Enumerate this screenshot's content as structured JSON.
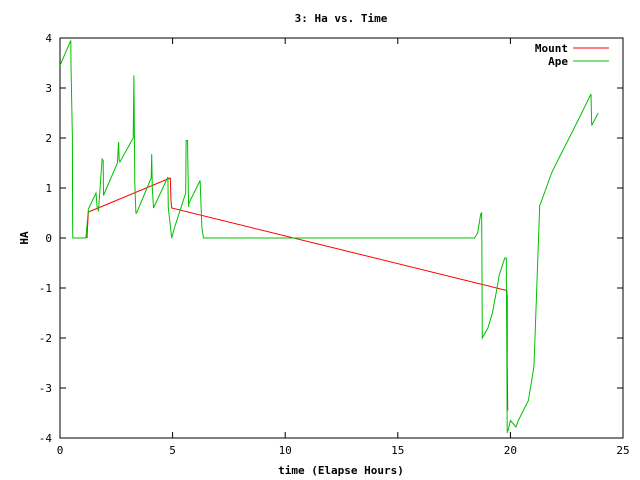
{
  "chart_data": {
    "type": "line",
    "title": "3: Ha vs. Time",
    "xlabel": "time (Elapse Hours)",
    "ylabel": "HA",
    "xlim": [
      0,
      25
    ],
    "ylim": [
      -4,
      4
    ],
    "xticks": [
      0,
      5,
      10,
      15,
      20,
      25
    ],
    "yticks": [
      -4,
      -3,
      -2,
      -1,
      0,
      1,
      2,
      3,
      4
    ],
    "grid": false,
    "legend_position": "top-right",
    "series": [
      {
        "name": "Mount",
        "color": "#ff0000",
        "x": [
          1.2,
          1.2,
          1.21,
          1.26,
          4.9,
          4.93,
          4.96,
          19.84,
          19.86,
          19.86,
          19.87,
          19.88
        ],
        "y": [
          0.0,
          0.0,
          0.1,
          0.52,
          1.2,
          0.75,
          0.6,
          -1.05,
          -1.2,
          -2.5,
          -3.0,
          -3.45
        ]
      },
      {
        "name": "Ape",
        "color": "#00c000",
        "x": [
          0.0,
          0.48,
          0.49,
          0.55,
          0.56,
          0.57,
          1.1,
          1.15,
          1.26,
          1.6,
          1.65,
          1.71,
          1.87,
          1.92,
          1.93,
          2.55,
          2.6,
          2.63,
          2.66,
          3.25,
          3.28,
          3.32,
          3.37,
          3.4,
          4.05,
          4.07,
          4.1,
          4.15,
          4.79,
          4.81,
          4.96,
          5.08,
          5.58,
          5.6,
          5.66,
          5.71,
          5.73,
          6.22,
          6.3,
          6.37,
          18.4,
          18.55,
          18.68,
          18.72,
          18.73,
          18.75,
          19.0,
          19.2,
          19.42,
          19.5,
          19.75,
          19.82,
          19.86,
          19.87,
          19.9,
          20.0,
          20.25,
          20.35,
          20.8,
          21.0,
          21.05,
          21.3,
          21.35,
          21.83,
          21.88,
          23.0,
          23.58,
          23.61,
          23.9
        ],
        "y": [
          3.45,
          3.95,
          3.45,
          2.0,
          0.4,
          0.0,
          0.0,
          0.0,
          0.58,
          0.9,
          0.6,
          0.55,
          1.58,
          1.55,
          0.85,
          1.5,
          1.92,
          1.55,
          1.52,
          2.0,
          3.25,
          1.1,
          0.5,
          0.5,
          1.2,
          1.68,
          1.0,
          0.6,
          1.22,
          0.6,
          0.0,
          0.2,
          0.9,
          1.95,
          1.95,
          0.62,
          0.7,
          1.15,
          0.2,
          0.0,
          0.0,
          0.1,
          0.48,
          0.5,
          0.1,
          -2.0,
          -1.8,
          -1.5,
          -0.97,
          -0.75,
          -0.4,
          -0.4,
          -3.9,
          -3.85,
          -3.85,
          -3.65,
          -3.78,
          -3.65,
          -3.25,
          -2.7,
          -2.55,
          0.65,
          0.7,
          1.3,
          1.35,
          2.35,
          2.88,
          2.25,
          2.5
        ]
      }
    ]
  }
}
